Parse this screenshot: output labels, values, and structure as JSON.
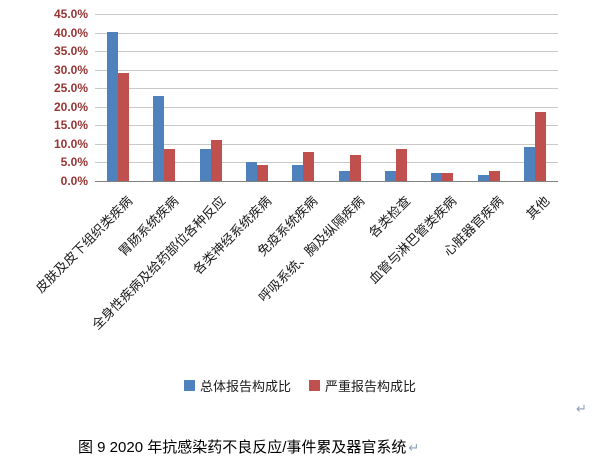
{
  "chart_data": {
    "type": "bar",
    "categories": [
      "皮肤及皮下组织类疾病",
      "胃肠系统疾病",
      "全身性疾病及给药部位各种反应",
      "各类神经系统疾病",
      "免疫系统疾病",
      "呼吸系统、胸及纵隔疾病",
      "各类检查",
      "血管与淋巴管类疾病",
      "心脏器官疾病",
      "其他"
    ],
    "series": [
      {
        "name": "总体报告构成比",
        "color": "#4F81BD",
        "values": [
          40.2,
          23.0,
          8.6,
          5.1,
          4.4,
          2.8,
          2.7,
          2.1,
          1.7,
          9.2
        ]
      },
      {
        "name": "严重报告构成比",
        "color": "#C0504D",
        "values": [
          29.0,
          8.7,
          11.1,
          4.2,
          7.8,
          6.9,
          8.6,
          2.1,
          2.8,
          18.6
        ]
      }
    ],
    "ylim": [
      0,
      45
    ],
    "ytick_step": 5,
    "yticks": [
      "45.0%",
      "40.0%",
      "35.0%",
      "30.0%",
      "25.0%",
      "20.0%",
      "15.0%",
      "10.0%",
      "5.0%",
      "0.0%"
    ],
    "legend_position": "bottom",
    "grid": true,
    "xlabel": "",
    "ylabel": ""
  },
  "caption": {
    "text": "图 9  2020 年抗感染药不良反应/事件累及器官系统",
    "paragraph_mark": "↵"
  },
  "stray_paragraph_mark": "↵",
  "colors": {
    "grid": "#C9C9C9",
    "axis": "#7F7F7F",
    "ytick_text": "#963634"
  }
}
